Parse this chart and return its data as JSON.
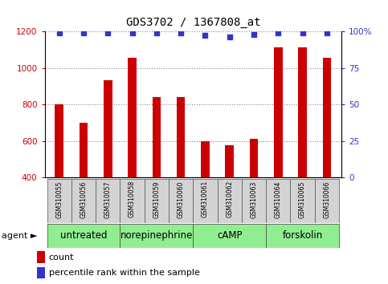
{
  "title": "GDS3702 / 1367808_at",
  "samples": [
    "GSM310055",
    "GSM310056",
    "GSM310057",
    "GSM310058",
    "GSM310059",
    "GSM310060",
    "GSM310061",
    "GSM310062",
    "GSM310063",
    "GSM310064",
    "GSM310065",
    "GSM310066"
  ],
  "counts": [
    800,
    700,
    930,
    1055,
    840,
    840,
    600,
    575,
    610,
    1110,
    1110,
    1055
  ],
  "percentiles": [
    99,
    99,
    99,
    99,
    99,
    99,
    97,
    96,
    98,
    99,
    99,
    99
  ],
  "bar_color": "#cc0000",
  "dot_color": "#3333cc",
  "ylim_left": [
    400,
    1200
  ],
  "ylim_right": [
    0,
    100
  ],
  "yticks_left": [
    400,
    600,
    800,
    1000,
    1200
  ],
  "yticks_right": [
    0,
    25,
    50,
    75,
    100
  ],
  "agent_groups": [
    {
      "label": "untreated",
      "start": 0,
      "end": 3
    },
    {
      "label": "norepinephrine",
      "start": 3,
      "end": 6
    },
    {
      "label": "cAMP",
      "start": 6,
      "end": 9
    },
    {
      "label": "forskolin",
      "start": 9,
      "end": 12
    }
  ],
  "agent_bg_color": "#90ee90",
  "sample_bg_color": "#d3d3d3",
  "grid_color": "#888888",
  "legend_count_color": "#cc0000",
  "legend_pct_color": "#3333cc",
  "title_fontsize": 10,
  "tick_fontsize": 7.5,
  "label_fontsize": 8,
  "agent_fontsize": 8.5,
  "sample_fontsize": 5.5,
  "bar_width": 0.35
}
